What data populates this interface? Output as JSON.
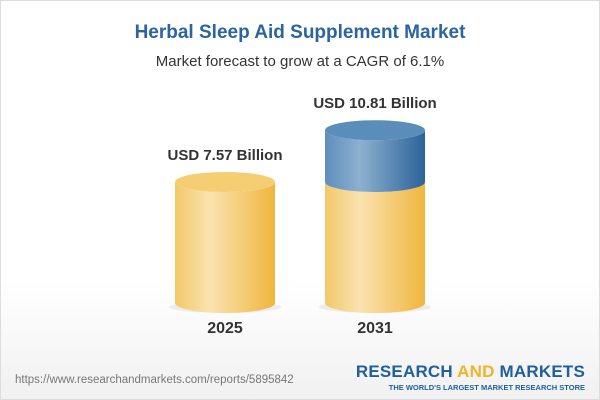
{
  "title": "Herbal Sleep Aid Supplement Market",
  "subtitle": "Market forecast to grow at a CAGR of 6.1%",
  "chart_data": {
    "type": "bar",
    "style": "3d-cylinder",
    "categories": [
      "2025",
      "2031"
    ],
    "values": [
      7.57,
      10.81
    ],
    "data_labels": [
      "USD 7.57 Billion",
      "USD 10.81 Billion"
    ],
    "unit": "USD Billion",
    "cagr": "6.1%",
    "colors": {
      "base": "#f2c45a",
      "growth": "#4f86b8"
    }
  },
  "footer": {
    "url": "https://www.researchandmarkets.com/reports/5895842",
    "logo_part1": "RESEARCH ",
    "logo_part2": "AND",
    "logo_part3": " MARKETS",
    "tagline": "THE WORLD'S LARGEST MARKET RESEARCH STORE"
  }
}
